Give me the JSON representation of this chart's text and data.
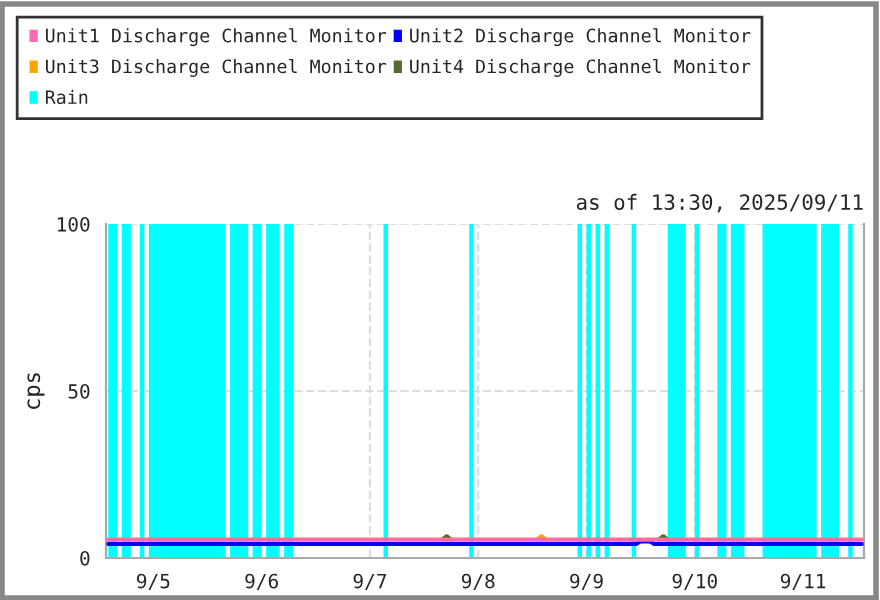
{
  "chart_data": {
    "type": "line",
    "ylabel": "cps",
    "annotations": [
      "as of 13:30, 2025/09/11"
    ],
    "xlim": [
      "2025-09-04T13:30",
      "2025-09-11T13:30"
    ],
    "xticks": [
      {
        "value": "2025-09-05",
        "label": "9/5"
      },
      {
        "value": "2025-09-06",
        "label": "9/6"
      },
      {
        "value": "2025-09-07",
        "label": "9/7"
      },
      {
        "value": "2025-09-08",
        "label": "9/8"
      },
      {
        "value": "2025-09-09",
        "label": "9/9"
      },
      {
        "value": "2025-09-10",
        "label": "9/10"
      },
      {
        "value": "2025-09-11",
        "label": "9/11"
      }
    ],
    "ylim": [
      0,
      100
    ],
    "yticks": [
      0,
      50,
      100
    ],
    "grid": true,
    "legend": "top",
    "marker": "none",
    "line_style": "solid",
    "bands": [
      {
        "axis": "x",
        "from": "2025-09-04T14:00",
        "to": "2025-09-04T16:00",
        "label": "Rain",
        "color": "#00ffff"
      },
      {
        "axis": "x",
        "from": "2025-09-04T17:00",
        "to": "2025-09-04T19:00",
        "color": "#00ffff"
      },
      {
        "axis": "x",
        "from": "2025-09-04T21:00",
        "to": "2025-09-04T22:00",
        "color": "#00ffff"
      },
      {
        "axis": "x",
        "from": "2025-09-04T23:00",
        "to": "2025-09-05T16:00",
        "color": "#00ffff"
      },
      {
        "axis": "x",
        "from": "2025-09-05T17:00",
        "to": "2025-09-05T21:00",
        "color": "#00ffff"
      },
      {
        "axis": "x",
        "from": "2025-09-05T22:00",
        "to": "2025-09-06T00:00",
        "color": "#00ffff"
      },
      {
        "axis": "x",
        "from": "2025-09-06T01:00",
        "to": "2025-09-06T04:00",
        "color": "#00ffff"
      },
      {
        "axis": "x",
        "from": "2025-09-06T05:00",
        "to": "2025-09-06T07:00",
        "color": "#00ffff"
      },
      {
        "axis": "x",
        "from": "2025-09-07T03:00",
        "to": "2025-09-07T04:00",
        "color": "#00ffff"
      },
      {
        "axis": "x",
        "from": "2025-09-07T22:00",
        "to": "2025-09-07T23:00",
        "color": "#00ffff"
      },
      {
        "axis": "x",
        "from": "2025-09-08T22:00",
        "to": "2025-09-08T23:00",
        "color": "#00ffff"
      },
      {
        "axis": "x",
        "from": "2025-09-09T00:00",
        "to": "2025-09-09T01:00",
        "color": "#00ffff"
      },
      {
        "axis": "x",
        "from": "2025-09-09T02:00",
        "to": "2025-09-09T03:00",
        "color": "#00ffff"
      },
      {
        "axis": "x",
        "from": "2025-09-09T04:00",
        "to": "2025-09-09T05:00",
        "color": "#00ffff"
      },
      {
        "axis": "x",
        "from": "2025-09-09T10:00",
        "to": "2025-09-09T11:00",
        "color": "#00ffff"
      },
      {
        "axis": "x",
        "from": "2025-09-09T18:00",
        "to": "2025-09-09T22:00",
        "color": "#00ffff"
      },
      {
        "axis": "x",
        "from": "2025-09-10T00:00",
        "to": "2025-09-10T01:00",
        "color": "#00ffff"
      },
      {
        "axis": "x",
        "from": "2025-09-10T05:00",
        "to": "2025-09-10T07:00",
        "color": "#00ffff"
      },
      {
        "axis": "x",
        "from": "2025-09-10T08:00",
        "to": "2025-09-10T11:00",
        "color": "#00ffff"
      },
      {
        "axis": "x",
        "from": "2025-09-10T15:00",
        "to": "2025-09-11T03:00",
        "color": "#00ffff"
      },
      {
        "axis": "x",
        "from": "2025-09-11T04:00",
        "to": "2025-09-11T08:00",
        "color": "#00ffff"
      },
      {
        "axis": "x",
        "from": "2025-09-11T10:00",
        "to": "2025-09-11T11:00",
        "color": "#00ffff"
      }
    ],
    "series": [
      {
        "name": "Unit1 Discharge Channel Monitor",
        "color": "#ff69b4",
        "x": [
          "2025-09-04T14:00",
          "2025-09-05T12:00",
          "2025-09-06T12:00",
          "2025-09-07T12:00",
          "2025-09-08T12:00",
          "2025-09-09T12:00",
          "2025-09-10T12:00",
          "2025-09-11T13:00"
        ],
        "values": [
          5.5,
          5.5,
          5.5,
          5.5,
          5.5,
          5.5,
          5.5,
          5.5
        ]
      },
      {
        "name": "Unit2 Discharge Channel Monitor",
        "color": "#0000ff",
        "x": [
          "2025-09-04T14:00",
          "2025-09-05T12:00",
          "2025-09-06T12:00",
          "2025-09-07T12:00",
          "2025-09-08T12:00",
          "2025-09-09T11:00",
          "2025-09-09T12:00",
          "2025-09-09T14:00",
          "2025-09-09T15:00",
          "2025-09-10T12:00",
          "2025-09-11T13:00"
        ],
        "values": [
          4.2,
          4.2,
          4.2,
          4.2,
          4.2,
          4.2,
          5,
          5,
          4.2,
          4.2,
          4.2
        ]
      },
      {
        "name": "Unit3 Discharge Channel Monitor",
        "color": "#ffa500",
        "x": [
          "2025-09-08T13:00",
          "2025-09-08T14:00",
          "2025-09-08T15:00"
        ],
        "values": [
          5.5,
          6.5,
          5.5
        ]
      },
      {
        "name": "Unit4 Discharge Channel Monitor",
        "color": "#556b2f",
        "x": [
          "2025-09-07T16:00",
          "2025-09-07T17:00",
          "2025-09-07T18:00",
          "2025-09-08T00:00",
          "2025-09-09T16:00",
          "2025-09-09T17:00",
          "2025-09-09T18:00"
        ],
        "values": [
          5.5,
          6.5,
          5.5,
          null,
          5.5,
          6.5,
          5.5
        ]
      }
    ]
  }
}
